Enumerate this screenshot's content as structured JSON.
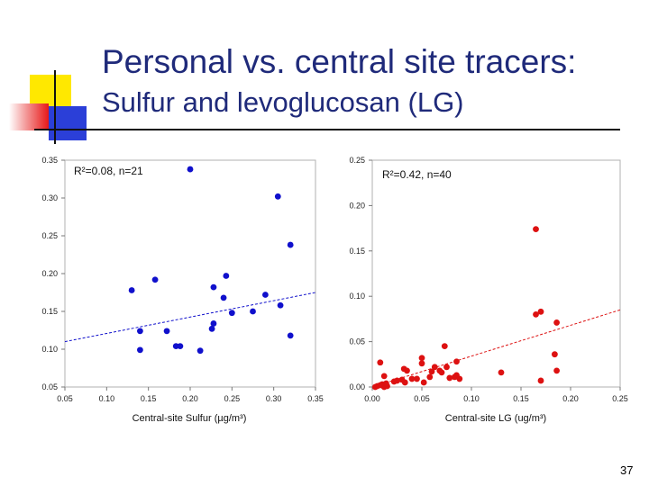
{
  "slide": {
    "title_line1": "Personal vs. central site tracers:",
    "title_line2": "Sulfur and levoglucosan (LG)",
    "page_number": "37",
    "colors": {
      "title": "#1f2a7a",
      "sulfur_points": "#1010cc",
      "lg_points": "#dd1111"
    }
  },
  "chart_data": [
    {
      "type": "scatter",
      "xlabel": "Central-site Sulfur (µg/m³)",
      "ylabel": "",
      "annotation": "R²=0.08, n=21",
      "xlim": [
        0.05,
        0.35
      ],
      "ylim": [
        0.05,
        0.35
      ],
      "xticks": [
        "0.05",
        "0.10",
        "0.15",
        "0.20",
        "0.25",
        "0.30",
        "0.35"
      ],
      "yticks": [
        "0.05",
        "0.10",
        "0.15",
        "0.20",
        "0.25",
        "0.30",
        "0.35"
      ],
      "grid": false,
      "trendline": {
        "x": [
          0.05,
          0.35
        ],
        "y": [
          0.11,
          0.175
        ]
      },
      "points": [
        {
          "x": 0.2,
          "y": 0.338
        },
        {
          "x": 0.305,
          "y": 0.302
        },
        {
          "x": 0.32,
          "y": 0.238
        },
        {
          "x": 0.13,
          "y": 0.178
        },
        {
          "x": 0.158,
          "y": 0.192
        },
        {
          "x": 0.243,
          "y": 0.197
        },
        {
          "x": 0.228,
          "y": 0.182
        },
        {
          "x": 0.24,
          "y": 0.168
        },
        {
          "x": 0.29,
          "y": 0.172
        },
        {
          "x": 0.308,
          "y": 0.158
        },
        {
          "x": 0.25,
          "y": 0.148
        },
        {
          "x": 0.275,
          "y": 0.15
        },
        {
          "x": 0.228,
          "y": 0.134
        },
        {
          "x": 0.226,
          "y": 0.127
        },
        {
          "x": 0.14,
          "y": 0.124
        },
        {
          "x": 0.172,
          "y": 0.124
        },
        {
          "x": 0.32,
          "y": 0.118
        },
        {
          "x": 0.183,
          "y": 0.104
        },
        {
          "x": 0.188,
          "y": 0.104
        },
        {
          "x": 0.14,
          "y": 0.099
        },
        {
          "x": 0.212,
          "y": 0.098
        }
      ]
    },
    {
      "type": "scatter",
      "xlabel": "Central-site LG (ug/m³)",
      "ylabel": "",
      "annotation": "R²=0.42, n=40",
      "xlim": [
        0.0,
        0.25
      ],
      "ylim": [
        0.0,
        0.25
      ],
      "xticks": [
        "0.00",
        "0.05",
        "0.10",
        "0.15",
        "0.20",
        "0.25"
      ],
      "yticks": [
        "0.00",
        "0.05",
        "0.10",
        "0.15",
        "0.20",
        "0.25"
      ],
      "grid": false,
      "trendline": {
        "x": [
          0.0,
          0.25
        ],
        "y": [
          0.0,
          0.085
        ]
      },
      "points": [
        {
          "x": 0.165,
          "y": 0.174
        },
        {
          "x": 0.165,
          "y": 0.08
        },
        {
          "x": 0.17,
          "y": 0.083
        },
        {
          "x": 0.186,
          "y": 0.071
        },
        {
          "x": 0.073,
          "y": 0.045
        },
        {
          "x": 0.184,
          "y": 0.036
        },
        {
          "x": 0.186,
          "y": 0.018
        },
        {
          "x": 0.17,
          "y": 0.007
        },
        {
          "x": 0.13,
          "y": 0.016
        },
        {
          "x": 0.085,
          "y": 0.028
        },
        {
          "x": 0.085,
          "y": 0.013
        },
        {
          "x": 0.083,
          "y": 0.011
        },
        {
          "x": 0.075,
          "y": 0.022
        },
        {
          "x": 0.07,
          "y": 0.016
        },
        {
          "x": 0.063,
          "y": 0.022
        },
        {
          "x": 0.06,
          "y": 0.017
        },
        {
          "x": 0.058,
          "y": 0.011
        },
        {
          "x": 0.05,
          "y": 0.032
        },
        {
          "x": 0.05,
          "y": 0.026
        },
        {
          "x": 0.04,
          "y": 0.009
        },
        {
          "x": 0.035,
          "y": 0.018
        },
        {
          "x": 0.032,
          "y": 0.02
        },
        {
          "x": 0.033,
          "y": 0.005
        },
        {
          "x": 0.025,
          "y": 0.007
        },
        {
          "x": 0.022,
          "y": 0.006
        },
        {
          "x": 0.012,
          "y": 0.012
        },
        {
          "x": 0.008,
          "y": 0.027
        },
        {
          "x": 0.01,
          "y": 0.003
        },
        {
          "x": 0.012,
          "y": 0.0
        },
        {
          "x": 0.008,
          "y": 0.002
        },
        {
          "x": 0.005,
          "y": 0.001
        },
        {
          "x": 0.003,
          "y": 0.0
        },
        {
          "x": 0.015,
          "y": 0.001
        },
        {
          "x": 0.03,
          "y": 0.008
        },
        {
          "x": 0.045,
          "y": 0.009
        },
        {
          "x": 0.068,
          "y": 0.018
        },
        {
          "x": 0.078,
          "y": 0.01
        },
        {
          "x": 0.088,
          "y": 0.009
        },
        {
          "x": 0.014,
          "y": 0.004
        },
        {
          "x": 0.052,
          "y": 0.005
        }
      ]
    }
  ]
}
